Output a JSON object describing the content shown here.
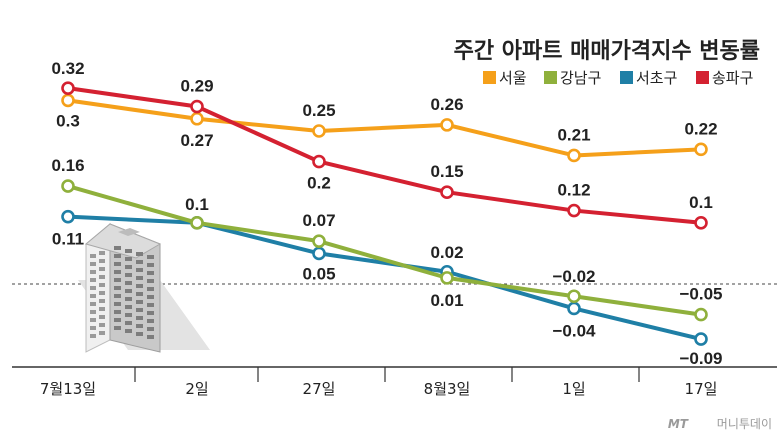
{
  "chart_data": {
    "type": "line",
    "title": "주간 아파트 매매가격지수 변동률",
    "categories": [
      "7월13일",
      "2일",
      "27일",
      "8월3일",
      "1일",
      "17일"
    ],
    "ylim": [
      -0.1,
      0.34
    ],
    "grid": false,
    "legend_position": "top-right",
    "baseline": 0,
    "series": [
      {
        "name": "서울",
        "color": "#f5a01a",
        "values": [
          0.3,
          0.27,
          0.25,
          0.26,
          0.21,
          0.22
        ],
        "labels": [
          "0.3",
          "0.27",
          "0.25",
          "0.26",
          "0.21",
          "0.22"
        ]
      },
      {
        "name": "강남구",
        "color": "#8fb03c",
        "values": [
          0.16,
          0.1,
          0.07,
          0.01,
          -0.02,
          -0.05
        ],
        "labels": [
          "0.16",
          "0.1",
          "0.07",
          "0.01",
          "−0.02",
          "−0.05"
        ]
      },
      {
        "name": "서초구",
        "color": "#1f7fa6",
        "values": [
          0.11,
          0.1,
          0.05,
          0.02,
          -0.04,
          -0.09
        ],
        "labels": [
          "0.11",
          "",
          "0.05",
          "0.02",
          "−0.04",
          "−0.09"
        ]
      },
      {
        "name": "송파구",
        "color": "#d42131",
        "values": [
          0.32,
          0.29,
          0.2,
          0.15,
          0.12,
          0.1
        ],
        "labels": [
          "0.32",
          "0.29",
          "0.2",
          "0.15",
          "0.12",
          "0.1"
        ]
      }
    ]
  },
  "watermark": {
    "logo": "MT",
    "text": "머니투데이"
  }
}
